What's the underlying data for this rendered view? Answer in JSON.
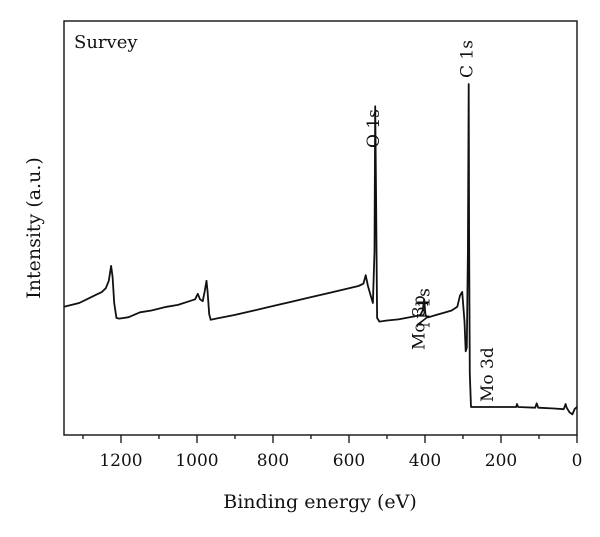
{
  "chart_data": {
    "type": "line",
    "panel_label": "Survey",
    "xlabel": "Binding energy (eV)",
    "ylabel": "Intensity (a.u.)",
    "xlim": [
      1350,
      0
    ],
    "x_reversed": true,
    "x_ticks": [
      1200,
      1000,
      800,
      600,
      400,
      200,
      0
    ],
    "y_ticks_shown": false,
    "grid": false,
    "line_color": "#111111",
    "series": [
      {
        "values": [
          [
            1350,
            0.4
          ],
          [
            1330,
            0.405
          ],
          [
            1310,
            0.41
          ],
          [
            1290,
            0.42
          ],
          [
            1270,
            0.43
          ],
          [
            1250,
            0.44
          ],
          [
            1240,
            0.45
          ],
          [
            1232,
            0.47
          ],
          [
            1226,
            0.51
          ],
          [
            1222,
            0.48
          ],
          [
            1218,
            0.41
          ],
          [
            1212,
            0.37
          ],
          [
            1205,
            0.368
          ],
          [
            1180,
            0.372
          ],
          [
            1150,
            0.385
          ],
          [
            1120,
            0.39
          ],
          [
            1100,
            0.395
          ],
          [
            1080,
            0.4
          ],
          [
            1050,
            0.405
          ],
          [
            1020,
            0.415
          ],
          [
            1005,
            0.42
          ],
          [
            998,
            0.435
          ],
          [
            992,
            0.42
          ],
          [
            985,
            0.415
          ],
          [
            980,
            0.44
          ],
          [
            975,
            0.47
          ],
          [
            972,
            0.44
          ],
          [
            968,
            0.38
          ],
          [
            964,
            0.365
          ],
          [
            950,
            0.368
          ],
          [
            900,
            0.378
          ],
          [
            850,
            0.39
          ],
          [
            800,
            0.402
          ],
          [
            750,
            0.414
          ],
          [
            700,
            0.426
          ],
          [
            650,
            0.438
          ],
          [
            600,
            0.45
          ],
          [
            575,
            0.456
          ],
          [
            562,
            0.462
          ],
          [
            556,
            0.485
          ],
          [
            550,
            0.455
          ],
          [
            543,
            0.43
          ],
          [
            537,
            0.41
          ],
          [
            533,
            0.55
          ],
          [
            531,
            0.94
          ],
          [
            529,
            0.72
          ],
          [
            526,
            0.37
          ],
          [
            520,
            0.36
          ],
          [
            500,
            0.363
          ],
          [
            470,
            0.366
          ],
          [
            440,
            0.372
          ],
          [
            420,
            0.376
          ],
          [
            412,
            0.378
          ],
          [
            406,
            0.39
          ],
          [
            402,
            0.42
          ],
          [
            399,
            0.38
          ],
          [
            396,
            0.372
          ],
          [
            390,
            0.372
          ],
          [
            370,
            0.378
          ],
          [
            350,
            0.384
          ],
          [
            330,
            0.39
          ],
          [
            315,
            0.4
          ],
          [
            308,
            0.43
          ],
          [
            302,
            0.44
          ],
          [
            296,
            0.36
          ],
          [
            293,
            0.28
          ],
          [
            290,
            0.29
          ],
          [
            287,
            0.55
          ],
          [
            285,
            1.0
          ],
          [
            284,
            0.6
          ],
          [
            282,
            0.22
          ],
          [
            279,
            0.13
          ],
          [
            270,
            0.13
          ],
          [
            250,
            0.13
          ],
          [
            200,
            0.13
          ],
          [
            160,
            0.13
          ],
          [
            158,
            0.138
          ],
          [
            155,
            0.13
          ],
          [
            110,
            0.128
          ],
          [
            106,
            0.14
          ],
          [
            102,
            0.128
          ],
          [
            60,
            0.126
          ],
          [
            35,
            0.124
          ],
          [
            30,
            0.138
          ],
          [
            27,
            0.128
          ],
          [
            20,
            0.116
          ],
          [
            12,
            0.11
          ],
          [
            6,
            0.125
          ],
          [
            0,
            0.13
          ]
        ]
      }
    ],
    "annotations": [
      {
        "text": "O 1s",
        "x": 531
      },
      {
        "text": "C 1s",
        "x": 285
      },
      {
        "text": "Mo 3p",
        "x": 412
      },
      {
        "text": "N 1s",
        "x": 399
      },
      {
        "text": "Mo 3d",
        "x": 232
      }
    ]
  }
}
